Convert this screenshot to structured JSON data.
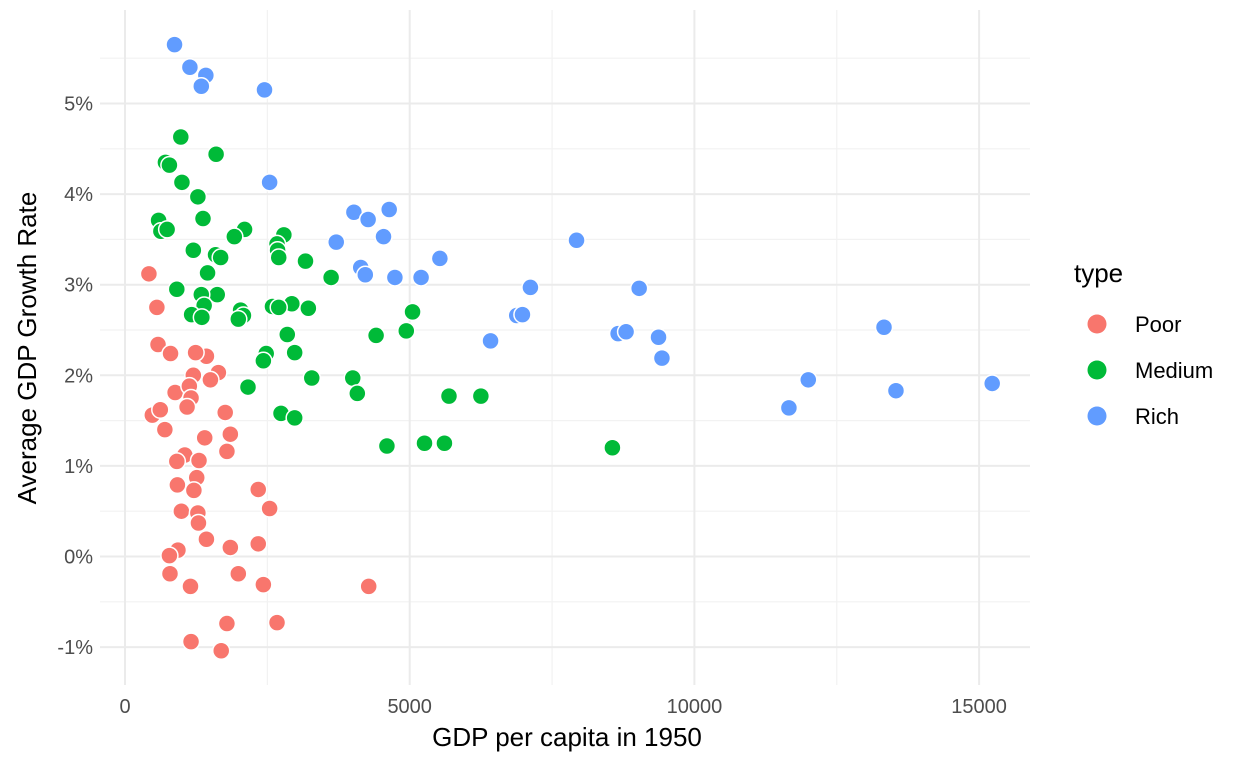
{
  "chart_data": {
    "type": "scatter",
    "xlabel": "GDP per capita in 1950",
    "ylabel": "Average GDP Growth Rate",
    "xlim": [
      -500,
      16000
    ],
    "ylim": [
      -1.4,
      5.9
    ],
    "x_ticks": [
      0,
      5000,
      10000,
      15000
    ],
    "x_tick_labels": [
      "0",
      "5000",
      "10000",
      "15000"
    ],
    "y_ticks": [
      -1,
      0,
      1,
      2,
      3,
      4,
      5
    ],
    "y_tick_labels": [
      "-1%",
      "0%",
      "1%",
      "2%",
      "3%",
      "4%",
      "5%"
    ],
    "grid": true,
    "legend": {
      "title": "type",
      "position": "right"
    },
    "series": [
      {
        "name": "Poor",
        "color": "#F8766D",
        "points": [
          [
            420,
            3.12
          ],
          [
            560,
            2.75
          ],
          [
            580,
            2.34
          ],
          [
            800,
            2.24
          ],
          [
            1430,
            2.21
          ],
          [
            1240,
            2.25
          ],
          [
            1200,
            2.0
          ],
          [
            1640,
            2.03
          ],
          [
            1500,
            1.95
          ],
          [
            880,
            1.81
          ],
          [
            1130,
            1.88
          ],
          [
            1160,
            1.75
          ],
          [
            1090,
            1.65
          ],
          [
            480,
            1.56
          ],
          [
            620,
            1.62
          ],
          [
            1760,
            1.59
          ],
          [
            700,
            1.4
          ],
          [
            1850,
            1.35
          ],
          [
            1400,
            1.31
          ],
          [
            1790,
            1.16
          ],
          [
            1050,
            1.12
          ],
          [
            910,
            1.05
          ],
          [
            1300,
            1.06
          ],
          [
            1260,
            0.87
          ],
          [
            920,
            0.79
          ],
          [
            1210,
            0.73
          ],
          [
            2340,
            0.74
          ],
          [
            990,
            0.5
          ],
          [
            1280,
            0.48
          ],
          [
            2540,
            0.53
          ],
          [
            1290,
            0.37
          ],
          [
            1430,
            0.19
          ],
          [
            1850,
            0.1
          ],
          [
            2340,
            0.14
          ],
          [
            930,
            0.07
          ],
          [
            780,
            0.01
          ],
          [
            790,
            -0.19
          ],
          [
            1990,
            -0.19
          ],
          [
            1150,
            -0.33
          ],
          [
            2430,
            -0.31
          ],
          [
            4280,
            -0.33
          ],
          [
            1790,
            -0.74
          ],
          [
            2670,
            -0.73
          ],
          [
            1160,
            -0.94
          ],
          [
            1690,
            -1.04
          ]
        ]
      },
      {
        "name": "Medium",
        "color": "#00BA38",
        "points": [
          [
            980,
            4.63
          ],
          [
            710,
            4.35
          ],
          [
            780,
            4.32
          ],
          [
            1600,
            4.44
          ],
          [
            1000,
            4.13
          ],
          [
            1280,
            3.97
          ],
          [
            590,
            3.71
          ],
          [
            1370,
            3.73
          ],
          [
            630,
            3.59
          ],
          [
            740,
            3.61
          ],
          [
            2100,
            3.61
          ],
          [
            1920,
            3.53
          ],
          [
            2790,
            3.55
          ],
          [
            2670,
            3.45
          ],
          [
            2680,
            3.38
          ],
          [
            1200,
            3.38
          ],
          [
            1590,
            3.33
          ],
          [
            1680,
            3.3
          ],
          [
            2700,
            3.3
          ],
          [
            3170,
            3.26
          ],
          [
            1450,
            3.13
          ],
          [
            3620,
            3.08
          ],
          [
            910,
            2.95
          ],
          [
            1620,
            2.89
          ],
          [
            1340,
            2.89
          ],
          [
            2930,
            2.79
          ],
          [
            1390,
            2.77
          ],
          [
            2590,
            2.76
          ],
          [
            2700,
            2.75
          ],
          [
            3220,
            2.74
          ],
          [
            2030,
            2.72
          ],
          [
            2080,
            2.66
          ],
          [
            1170,
            2.67
          ],
          [
            1350,
            2.64
          ],
          [
            1990,
            2.62
          ],
          [
            5050,
            2.7
          ],
          [
            4940,
            2.49
          ],
          [
            2850,
            2.45
          ],
          [
            4410,
            2.44
          ],
          [
            2480,
            2.24
          ],
          [
            2980,
            2.25
          ],
          [
            2430,
            2.16
          ],
          [
            3280,
            1.97
          ],
          [
            4000,
            1.97
          ],
          [
            2160,
            1.87
          ],
          [
            4080,
            1.8
          ],
          [
            5690,
            1.77
          ],
          [
            6250,
            1.77
          ],
          [
            2740,
            1.58
          ],
          [
            2980,
            1.53
          ],
          [
            4600,
            1.22
          ],
          [
            5260,
            1.25
          ],
          [
            5610,
            1.25
          ],
          [
            8560,
            1.2
          ]
        ]
      },
      {
        "name": "Rich",
        "color": "#619CFF",
        "points": [
          [
            870,
            5.65
          ],
          [
            1140,
            5.4
          ],
          [
            1420,
            5.31
          ],
          [
            1340,
            5.19
          ],
          [
            2450,
            5.15
          ],
          [
            2540,
            4.13
          ],
          [
            4640,
            3.83
          ],
          [
            4020,
            3.8
          ],
          [
            4270,
            3.72
          ],
          [
            4540,
            3.53
          ],
          [
            3710,
            3.47
          ],
          [
            7930,
            3.49
          ],
          [
            5530,
            3.29
          ],
          [
            4140,
            3.19
          ],
          [
            4220,
            3.11
          ],
          [
            4740,
            3.08
          ],
          [
            5200,
            3.08
          ],
          [
            7120,
            2.97
          ],
          [
            9030,
            2.96
          ],
          [
            13330,
            2.53
          ],
          [
            8660,
            2.46
          ],
          [
            8800,
            2.48
          ],
          [
            6880,
            2.66
          ],
          [
            6980,
            2.67
          ],
          [
            9370,
            2.42
          ],
          [
            6420,
            2.38
          ],
          [
            9430,
            2.19
          ],
          [
            12000,
            1.95
          ],
          [
            11660,
            1.64
          ],
          [
            13540,
            1.83
          ],
          [
            15230,
            1.91
          ]
        ]
      }
    ]
  }
}
